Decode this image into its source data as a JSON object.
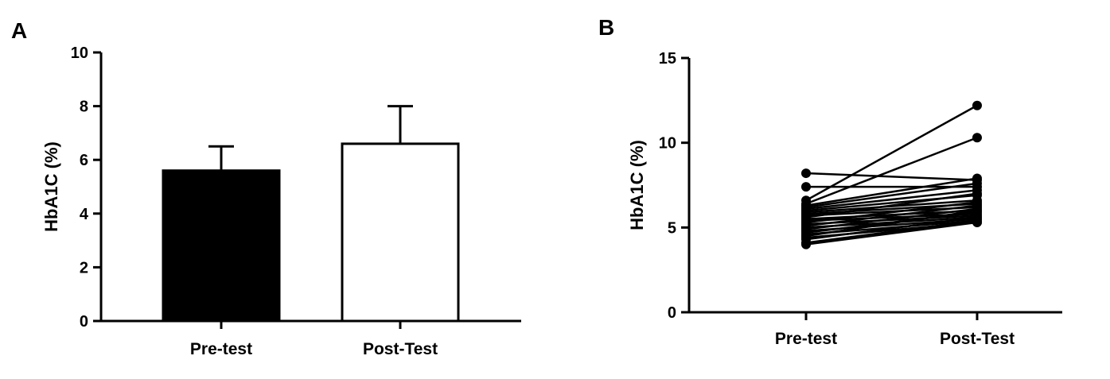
{
  "chart_data": [
    {
      "panel": "A",
      "type": "bar",
      "categories": [
        "Pre-test",
        "Post-Test"
      ],
      "values": [
        5.6,
        6.6
      ],
      "error_upper": [
        6.5,
        8.0
      ],
      "bar_colors": [
        "#000000",
        "#ffffff"
      ],
      "ylabel": "HbA1C (%)",
      "ylim": [
        0,
        10
      ],
      "yticks": [
        "0",
        "2",
        "4",
        "6",
        "8",
        "10"
      ]
    },
    {
      "panel": "B",
      "type": "line",
      "categories": [
        "Pre-test",
        "Post-Test"
      ],
      "ylabel": "HbA1C (%)",
      "ylim": [
        0,
        15
      ],
      "yticks": [
        "0",
        "5",
        "10",
        "15"
      ],
      "pairs": [
        [
          8.2,
          7.8
        ],
        [
          7.4,
          7.4
        ],
        [
          6.6,
          12.2
        ],
        [
          6.4,
          10.3
        ],
        [
          6.3,
          7.9
        ],
        [
          6.2,
          7.6
        ],
        [
          6.1,
          7.2
        ],
        [
          6.0,
          6.9
        ],
        [
          5.9,
          6.6
        ],
        [
          5.8,
          6.4
        ],
        [
          5.7,
          6.2
        ],
        [
          5.6,
          7.0
        ],
        [
          5.5,
          6.0
        ],
        [
          5.4,
          5.8
        ],
        [
          5.3,
          6.5
        ],
        [
          5.2,
          5.7
        ],
        [
          5.1,
          6.3
        ],
        [
          5.0,
          5.6
        ],
        [
          4.9,
          6.1
        ],
        [
          4.8,
          5.5
        ],
        [
          4.7,
          5.9
        ],
        [
          4.6,
          5.4
        ],
        [
          4.5,
          6.0
        ],
        [
          4.4,
          5.3
        ],
        [
          4.3,
          5.6
        ],
        [
          4.1,
          5.4
        ],
        [
          4.0,
          5.3
        ]
      ]
    }
  ]
}
